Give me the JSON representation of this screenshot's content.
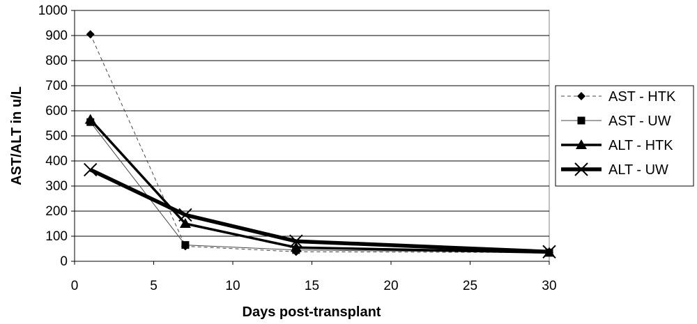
{
  "chart_data": {
    "type": "line",
    "title": "",
    "xlabel": "Days post-transplant",
    "ylabel": "AST/ALT in u/L",
    "xlim": [
      0,
      30
    ],
    "ylim": [
      0,
      1000
    ],
    "x_ticks": [
      "0",
      "5",
      "10",
      "15",
      "20",
      "25",
      "30"
    ],
    "y_ticks": [
      "0",
      "100",
      "200",
      "300",
      "400",
      "500",
      "600",
      "700",
      "800",
      "900",
      "1000"
    ],
    "grid": "horizontal",
    "legend_position": "right",
    "series": [
      {
        "name": "AST - HTK",
        "marker": "diamond",
        "line": "dashed-thin",
        "points": [
          [
            1,
            905
          ],
          [
            7,
            60
          ],
          [
            14,
            38
          ],
          [
            30,
            35
          ]
        ]
      },
      {
        "name": "AST - UW",
        "marker": "square",
        "line": "thin",
        "points": [
          [
            1,
            555
          ],
          [
            7,
            65
          ],
          [
            14,
            45
          ],
          [
            30,
            35
          ]
        ]
      },
      {
        "name": "ALT - HTK",
        "marker": "triangle",
        "line": "thick",
        "points": [
          [
            1,
            565
          ],
          [
            7,
            150
          ],
          [
            14,
            55
          ],
          [
            30,
            35
          ]
        ]
      },
      {
        "name": "ALT - UW",
        "marker": "x",
        "line": "very-thick",
        "points": [
          [
            1,
            365
          ],
          [
            7,
            185
          ],
          [
            14,
            80
          ],
          [
            30,
            38
          ]
        ]
      }
    ]
  }
}
